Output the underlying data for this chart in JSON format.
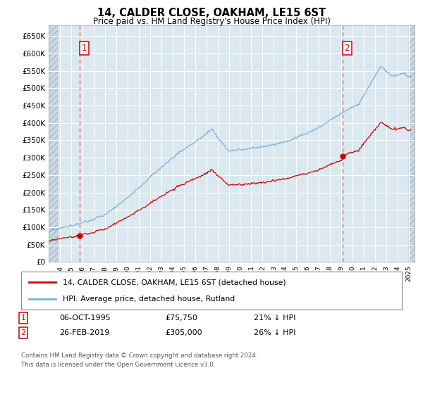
{
  "title": "14, CALDER CLOSE, OAKHAM, LE15 6ST",
  "subtitle": "Price paid vs. HM Land Registry's House Price Index (HPI)",
  "ylim": [
    0,
    680000
  ],
  "yticks": [
    0,
    50000,
    100000,
    150000,
    200000,
    250000,
    300000,
    350000,
    400000,
    450000,
    500000,
    550000,
    600000,
    650000
  ],
  "ytick_labels": [
    "£0",
    "£50K",
    "£100K",
    "£150K",
    "£200K",
    "£250K",
    "£300K",
    "£350K",
    "£400K",
    "£450K",
    "£500K",
    "£550K",
    "£600K",
    "£650K"
  ],
  "xlim_start": 1993.0,
  "xlim_end": 2025.5,
  "sale1_date": 1995.78,
  "sale1_price": 75750,
  "sale2_date": 2019.12,
  "sale2_price": 305000,
  "sale1_label": "1",
  "sale2_label": "2",
  "legend_line1": "14, CALDER CLOSE, OAKHAM, LE15 6ST (detached house)",
  "legend_line2": "HPI: Average price, detached house, Rutland",
  "note1_num": "1",
  "note1_date": "06-OCT-1995",
  "note1_price": "£75,750",
  "note1_hpi": "21% ↓ HPI",
  "note2_num": "2",
  "note2_date": "26-FEB-2019",
  "note2_price": "£305,000",
  "note2_hpi": "26% ↓ HPI",
  "footer": "Contains HM Land Registry data © Crown copyright and database right 2024.\nThis data is licensed under the Open Government Licence v3.0.",
  "line_color_sale": "#cc0000",
  "line_color_hpi": "#7bafd4",
  "bg_plot": "#dce8f0",
  "grid_color": "#ffffff",
  "dashed_line_color": "#e06060"
}
